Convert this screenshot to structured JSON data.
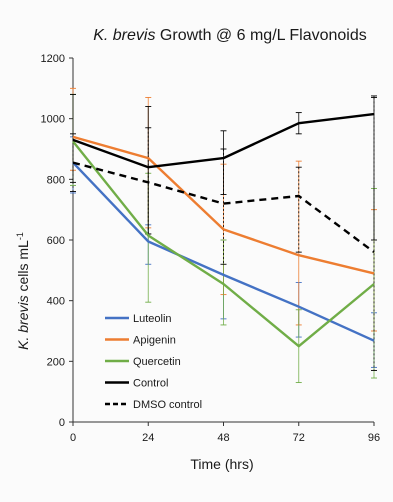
{
  "chart_data": {
    "type": "line",
    "title_parts": {
      "italic": "K. brevis",
      "rest": " Growth @ 6 mg/L Flavonoids"
    },
    "xlabel": "Time (hrs)",
    "ylabel_parts": {
      "italic": "K. brevis",
      "rest": " cells mL",
      "sup": "-1"
    },
    "x": [
      0,
      24,
      48,
      72,
      96
    ],
    "x_tick_labels": [
      "0",
      "24",
      "48",
      "72",
      "96"
    ],
    "ylim": [
      0,
      1200
    ],
    "y_ticks": [
      0,
      200,
      400,
      600,
      800,
      1000,
      1200
    ],
    "y_tick_labels": [
      "0",
      "200",
      "400",
      "600",
      "800",
      "1000",
      "1200"
    ],
    "grid": false,
    "legend_position": "bottom-left",
    "series": [
      {
        "name": "Luteolin",
        "color": "#4472c4",
        "dash": "solid",
        "values": [
          855,
          595,
          485,
          380,
          268
        ],
        "err_lo": [
          755,
          520,
          340,
          280,
          180
        ],
        "err_hi": [
          940,
          650,
          600,
          460,
          360
        ]
      },
      {
        "name": "Apigenin",
        "color": "#ed7d31",
        "dash": "solid",
        "values": [
          940,
          870,
          635,
          550,
          490
        ],
        "err_lo": [
          830,
          640,
          420,
          320,
          300
        ],
        "err_hi": [
          1100,
          1070,
          850,
          860,
          700
        ]
      },
      {
        "name": "Quercetin",
        "color": "#70ad47",
        "dash": "solid",
        "values": [
          925,
          615,
          455,
          250,
          455
        ],
        "err_lo": [
          780,
          395,
          320,
          130,
          145
        ],
        "err_hi": [
          1080,
          820,
          600,
          370,
          770
        ]
      },
      {
        "name": "Control",
        "color": "#000000",
        "dash": "solid",
        "values": [
          930,
          840,
          870,
          985,
          1015
        ],
        "err_lo": [
          790,
          620,
          750,
          950,
          600
        ],
        "err_hi": [
          1080,
          1040,
          960,
          1020,
          1075
        ]
      },
      {
        "name": "DMSO control",
        "color": "#000000",
        "dash": "dashed",
        "values": [
          855,
          790,
          720,
          745,
          560
        ],
        "err_lo": [
          760,
          620,
          520,
          560,
          170
        ],
        "err_hi": [
          950,
          970,
          900,
          840,
          1070
        ]
      }
    ]
  }
}
